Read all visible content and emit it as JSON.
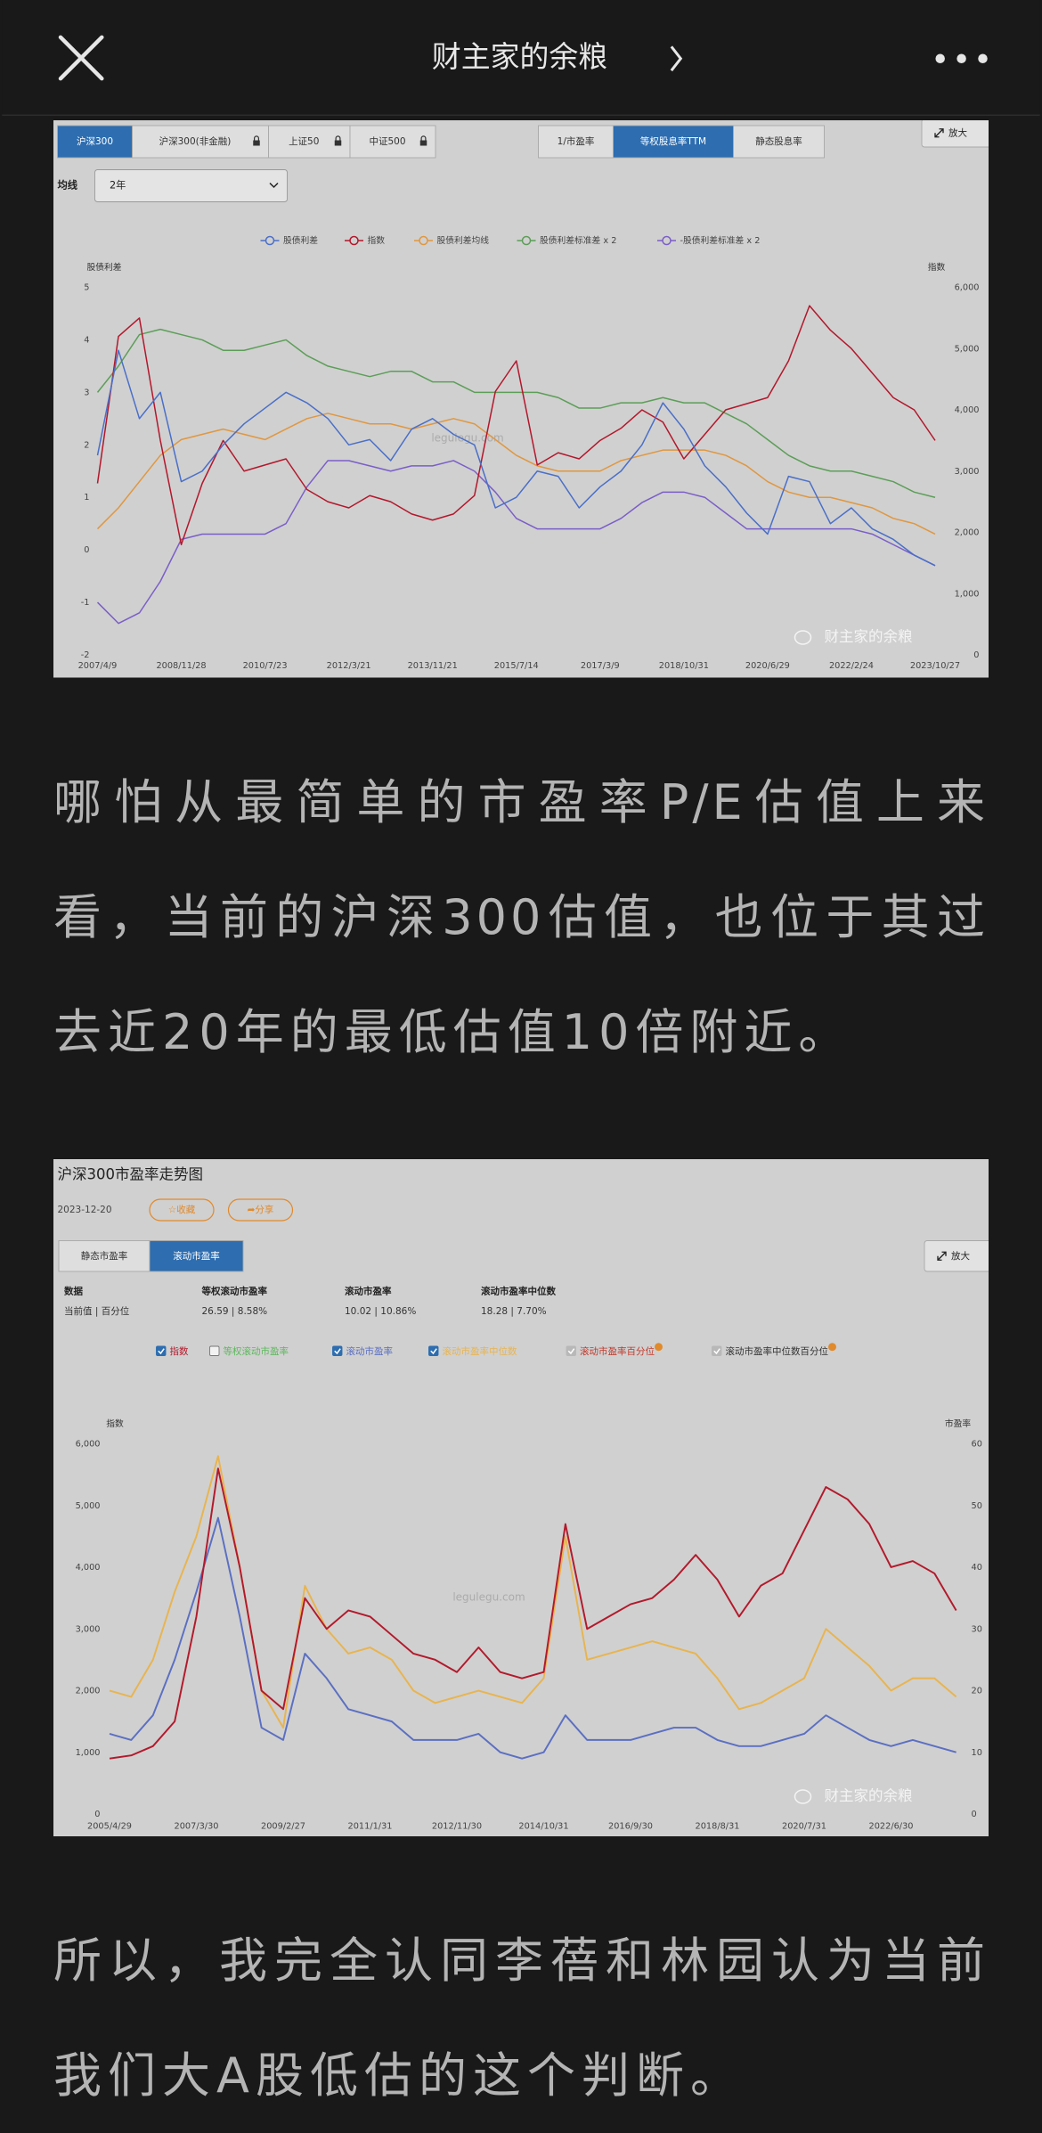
{
  "header": {
    "title": "财主家的余粮"
  },
  "paragraphs": [
    {
      "lines": [
        "哪怕从最简单的市盈率P/E估值上来",
        "看，当前的沪深300估值，也位于其过",
        "去近20年的最低估值10倍附近。"
      ]
    },
    {
      "lines": [
        "所以，我完全认同李蓓和林园认为当前",
        "我们大A股低估的这个判断。"
      ]
    }
  ],
  "chart_data": [
    {
      "type": "line",
      "tabs": [
        "沪深300",
        "沪深300(非金融)",
        "上证50",
        "中证500"
      ],
      "tab_locked": [
        false,
        true,
        true,
        true
      ],
      "active_tab": 0,
      "tabs_right": [
        "1/市盈率",
        "等权股息率TTM",
        "静态股息率"
      ],
      "active_tab_right": 1,
      "zoom": "放大",
      "ma_label": "均线",
      "ma_value": "2年",
      "y_label": "股债利差",
      "y2_label": "指数",
      "categories": [
        "2007/4/9",
        null,
        null,
        null,
        "2008/11/28",
        null,
        null,
        null,
        "2010/7/23",
        null,
        null,
        null,
        "2012/3/21",
        null,
        null,
        null,
        "2013/11/21",
        null,
        null,
        null,
        "2015/7/14",
        null,
        null,
        null,
        "2017/3/9",
        null,
        null,
        null,
        "2018/10/31",
        null,
        null,
        null,
        "2020/6/29",
        null,
        null,
        null,
        "2022/2/24",
        null,
        null,
        null,
        "2023/10/27"
      ],
      "series": [
        {
          "name": "股债利差",
          "color": "#4a6fc8",
          "values": [
            1.8,
            3.8,
            2.5,
            3.0,
            1.3,
            1.5,
            2.0,
            2.4,
            2.7,
            3.0,
            2.8,
            2.5,
            2.0,
            2.1,
            1.7,
            2.3,
            2.5,
            2.2,
            2.0,
            0.8,
            1.0,
            1.5,
            1.4,
            0.8,
            1.2,
            1.5,
            2.0,
            2.8,
            2.3,
            1.6,
            1.2,
            0.7,
            0.3,
            1.4,
            1.3,
            0.5,
            0.8,
            0.4,
            0.2,
            -0.1,
            -0.3
          ]
        },
        {
          "name": "指数",
          "color": "#b3172b",
          "axis": "y2",
          "values": [
            2800,
            5200,
            5500,
            3500,
            1800,
            2800,
            3500,
            3000,
            3100,
            3200,
            2700,
            2500,
            2400,
            2600,
            2500,
            2300,
            2200,
            2300,
            2600,
            4300,
            4800,
            3100,
            3300,
            3200,
            3500,
            3700,
            4000,
            3800,
            3200,
            3600,
            4000,
            4100,
            4200,
            4800,
            5700,
            5300,
            5000,
            4600,
            4200,
            4000,
            3500
          ]
        },
        {
          "name": "股债利差均线",
          "color": "#e0973f",
          "values": [
            0.4,
            0.8,
            1.3,
            1.8,
            2.1,
            2.2,
            2.3,
            2.2,
            2.1,
            2.3,
            2.5,
            2.6,
            2.5,
            2.4,
            2.4,
            2.3,
            2.4,
            2.5,
            2.4,
            2.1,
            1.8,
            1.6,
            1.5,
            1.5,
            1.5,
            1.7,
            1.8,
            1.9,
            1.9,
            1.9,
            1.8,
            1.6,
            1.3,
            1.1,
            1.0,
            1.0,
            0.9,
            0.8,
            0.6,
            0.5,
            0.3
          ]
        },
        {
          "name": "股债利差标准差 x 2",
          "color": "#5c9e58",
          "values": [
            3.0,
            3.5,
            4.1,
            4.2,
            4.1,
            4.0,
            3.8,
            3.8,
            3.9,
            4.0,
            3.7,
            3.5,
            3.4,
            3.3,
            3.4,
            3.4,
            3.2,
            3.2,
            3.0,
            3.0,
            3.0,
            3.0,
            2.9,
            2.7,
            2.7,
            2.8,
            2.8,
            2.9,
            2.8,
            2.8,
            2.6,
            2.4,
            2.1,
            1.8,
            1.6,
            1.5,
            1.5,
            1.4,
            1.3,
            1.1,
            1.0
          ]
        },
        {
          "name": "-股债利差标准差 x 2",
          "color": "#7a5ec8",
          "values": [
            -1.0,
            -1.4,
            -1.2,
            -0.6,
            0.2,
            0.3,
            0.3,
            0.3,
            0.3,
            0.5,
            1.2,
            1.7,
            1.7,
            1.6,
            1.5,
            1.6,
            1.6,
            1.7,
            1.5,
            1.1,
            0.6,
            0.4,
            0.4,
            0.4,
            0.4,
            0.6,
            0.9,
            1.1,
            1.1,
            1.0,
            0.7,
            0.4,
            0.4,
            0.4,
            0.4,
            0.4,
            0.4,
            0.3,
            0.1,
            -0.1,
            -0.3
          ]
        }
      ],
      "ylim": [
        -2,
        5
      ],
      "yticks": [
        -2,
        -1,
        0,
        1,
        2,
        3,
        4,
        5
      ],
      "y2lim": [
        0,
        6000
      ],
      "y2ticks": [
        0,
        {
          "value": 1000,
          "label": "1,000"
        },
        {
          "value": 2000,
          "label": "2,000"
        },
        {
          "value": 3000,
          "label": "3,000"
        },
        {
          "value": 4000,
          "label": "4,000"
        },
        {
          "value": 5000,
          "label": "5,000"
        },
        {
          "value": 6000,
          "label": "6,000"
        }
      ],
      "grid": false,
      "watermark": "legulegu.com",
      "source": "财主家的余粮"
    },
    {
      "type": "line",
      "title": "沪深300市盈率走势图",
      "date": "2023-12-20",
      "buttons": [
        "☆收藏",
        "➦分享"
      ],
      "tabs": [
        "静态市盈率",
        "滚动市盈率"
      ],
      "active_tab": 1,
      "zoom": "放大",
      "stats": [
        {
          "label": "数据",
          "value": "当前值 | 百分位"
        },
        {
          "label": "等权滚动市盈率",
          "value": "26.59 | 8.58%"
        },
        {
          "label": "滚动市盈率",
          "value": "10.02 | 10.86%"
        },
        {
          "label": "滚动市盈率中位数",
          "value": "18.28 | 7.70%"
        }
      ],
      "y_label": "指数",
      "y2_label": "市盈率",
      "categories": [
        "2005/4/29",
        null,
        null,
        null,
        "2007/3/30",
        null,
        null,
        null,
        "2009/2/27",
        null,
        null,
        null,
        "2011/1/31",
        null,
        null,
        null,
        "2012/11/30",
        null,
        null,
        null,
        "2014/10/31",
        null,
        null,
        null,
        "2016/9/30",
        null,
        null,
        null,
        "2018/8/31",
        null,
        null,
        null,
        "2020/7/31",
        null,
        null,
        null,
        "2022/6/30",
        null,
        null,
        null
      ],
      "series": [
        {
          "name": "指数",
          "color": "#b3192b",
          "checked": true,
          "values": [
            900,
            950,
            1100,
            1500,
            3200,
            5600,
            4000,
            2000,
            1700,
            3500,
            3000,
            3300,
            3200,
            2900,
            2600,
            2500,
            2300,
            2700,
            2300,
            2200,
            2300,
            4700,
            3000,
            3200,
            3400,
            3500,
            3800,
            4200,
            3800,
            3200,
            3700,
            3900,
            4600,
            5300,
            5100,
            4700,
            4000,
            4100,
            3900,
            3300
          ]
        },
        {
          "name": "等权滚动市盈率",
          "color": "#5cb85c",
          "checked": false
        },
        {
          "name": "滚动市盈率",
          "color": "#5b6fc2",
          "checked": true,
          "axis": "y2",
          "values": [
            13,
            12,
            16,
            25,
            36,
            48,
            32,
            14,
            12,
            26,
            22,
            17,
            16,
            15,
            12,
            12,
            12,
            13,
            10,
            9,
            10,
            16,
            12,
            12,
            12,
            13,
            14,
            14,
            12,
            11,
            11,
            12,
            13,
            16,
            14,
            12,
            11,
            12,
            11,
            10
          ]
        },
        {
          "name": "滚动市盈率中位数",
          "color": "#e8b44f",
          "checked": true,
          "axis": "y2",
          "values": [
            20,
            19,
            25,
            36,
            45,
            58,
            40,
            20,
            14,
            37,
            30,
            26,
            27,
            25,
            20,
            18,
            19,
            20,
            19,
            18,
            22,
            45,
            25,
            26,
            27,
            28,
            27,
            26,
            22,
            17,
            18,
            20,
            22,
            30,
            27,
            24,
            20,
            22,
            22,
            19
          ]
        },
        {
          "name": "滚动市盈率百分位",
          "color": "#c0392b",
          "checked": true,
          "disabled": true
        },
        {
          "name": "滚动市盈率中位数百分位",
          "color": "#333333",
          "checked": true,
          "disabled": true
        }
      ],
      "ylim": [
        0,
        6000
      ],
      "yticks": [
        0,
        {
          "value": 1000,
          "label": "1,000"
        },
        {
          "value": 2000,
          "label": "2,000"
        },
        {
          "value": 3000,
          "label": "3,000"
        },
        {
          "value": 4000,
          "label": "4,000"
        },
        {
          "value": 5000,
          "label": "5,000"
        },
        {
          "value": 6000,
          "label": "6,000"
        }
      ],
      "y2lim": [
        0,
        60
      ],
      "y2ticks": [
        0,
        10,
        20,
        30,
        40,
        50,
        60
      ],
      "grid": false,
      "watermark": "legulegu.com",
      "source": "财主家的余粮"
    }
  ]
}
